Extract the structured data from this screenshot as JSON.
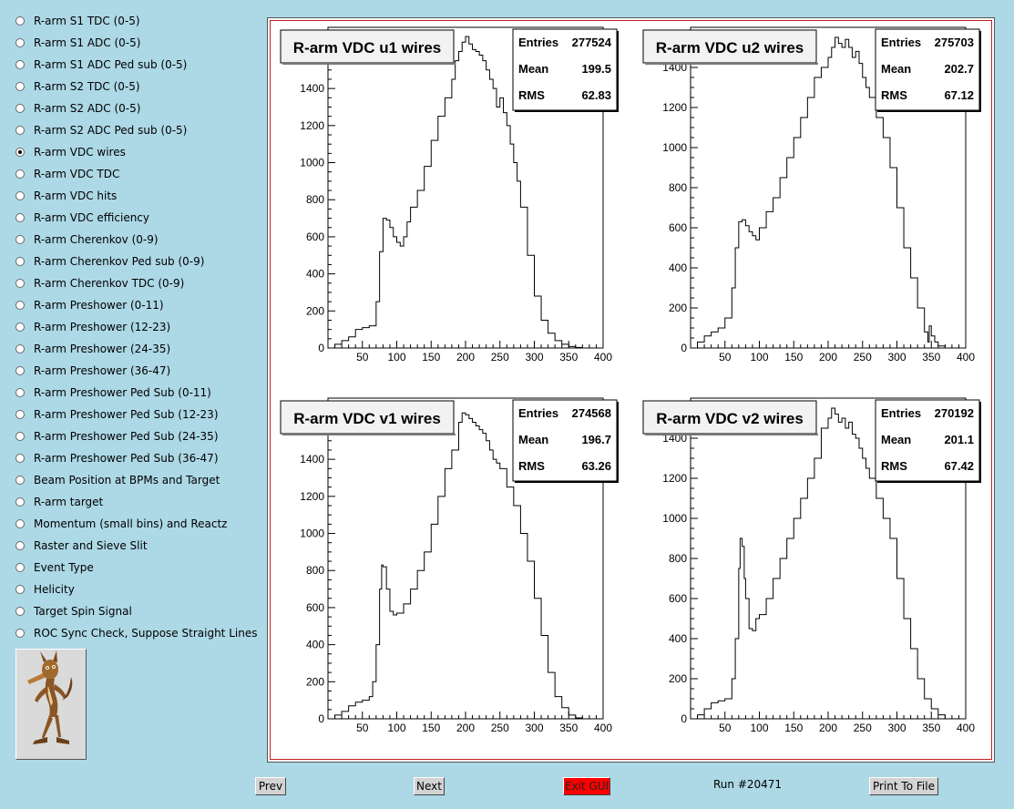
{
  "menu": {
    "selected_index": 6,
    "items": [
      "R-arm S1 TDC (0-5)",
      "R-arm S1 ADC (0-5)",
      "R-arm S1 ADC Ped sub (0-5)",
      "R-arm S2 TDC (0-5)",
      "R-arm S2 ADC (0-5)",
      "R-arm S2 ADC Ped sub (0-5)",
      "R-arm VDC wires",
      "R-arm VDC TDC",
      "R-arm VDC hits",
      "R-arm VDC efficiency",
      "R-arm Cherenkov (0-9)",
      "R-arm Cherenkov Ped sub (0-9)",
      "R-arm Cherenkov TDC (0-9)",
      "R-arm Preshower (0-11)",
      "R-arm Preshower (12-23)",
      "R-arm Preshower (24-35)",
      "R-arm Preshower (36-47)",
      "R-arm Preshower Ped Sub (0-11)",
      "R-arm Preshower Ped Sub (12-23)",
      "R-arm Preshower Ped Sub (24-35)",
      "R-arm Preshower Ped Sub (36-47)",
      "Beam Position at BPMs and Target",
      "R-arm target",
      "Momentum (small bins) and Reactz",
      "Raster and Sieve Slit",
      "Event Type",
      "Helicity",
      "Target Spin Signal",
      "ROC Sync Check, Suppose Straight Lines"
    ]
  },
  "logo": {
    "icon": "coyote-mascot-icon"
  },
  "buttons": {
    "prev": "Prev",
    "next": "Next",
    "exit": "Exit GUI",
    "print": "Print To File"
  },
  "run_label": "Run #20471",
  "stats_labels": {
    "entries": "Entries",
    "mean": "Mean",
    "rms": "RMS"
  },
  "chart_data": [
    {
      "type": "line",
      "title": "R-arm VDC u1 wires",
      "stats": {
        "entries": "277524",
        "mean": "199.5",
        "rms": "62.83"
      },
      "xlim": [
        0,
        400
      ],
      "ylim": [
        0,
        1730
      ],
      "xticks": [
        50,
        100,
        150,
        200,
        250,
        300,
        350,
        400
      ],
      "yticks": [
        0,
        200,
        400,
        600,
        800,
        1000,
        1200,
        1400,
        1600
      ],
      "x": [
        0,
        10,
        20,
        30,
        40,
        50,
        60,
        70,
        75,
        80,
        85,
        90,
        95,
        100,
        105,
        110,
        115,
        120,
        130,
        140,
        150,
        160,
        170,
        180,
        185,
        190,
        195,
        200,
        205,
        210,
        215,
        220,
        225,
        230,
        235,
        240,
        245,
        250,
        255,
        260,
        265,
        270,
        275,
        280,
        290,
        300,
        310,
        320,
        330,
        340,
        350,
        360,
        370
      ],
      "y": [
        0,
        20,
        40,
        60,
        100,
        110,
        120,
        250,
        520,
        700,
        690,
        650,
        600,
        570,
        550,
        600,
        680,
        760,
        850,
        980,
        1120,
        1250,
        1350,
        1450,
        1550,
        1600,
        1650,
        1680,
        1640,
        1610,
        1600,
        1580,
        1550,
        1500,
        1450,
        1400,
        1300,
        1350,
        1270,
        1200,
        1100,
        1000,
        900,
        760,
        500,
        280,
        150,
        80,
        40,
        20,
        8,
        3,
        0
      ]
    },
    {
      "type": "line",
      "title": "R-arm VDC u2 wires",
      "stats": {
        "entries": "275703",
        "mean": "202.7",
        "rms": "67.12"
      },
      "xlim": [
        0,
        400
      ],
      "ylim": [
        0,
        1600
      ],
      "xticks": [
        50,
        100,
        150,
        200,
        250,
        300,
        350,
        400
      ],
      "yticks": [
        0,
        200,
        400,
        600,
        800,
        1000,
        1200,
        1400
      ],
      "x": [
        0,
        10,
        20,
        30,
        40,
        50,
        60,
        65,
        70,
        75,
        80,
        85,
        90,
        95,
        100,
        110,
        120,
        130,
        140,
        150,
        160,
        170,
        180,
        190,
        200,
        205,
        210,
        215,
        220,
        225,
        230,
        235,
        240,
        245,
        250,
        255,
        260,
        270,
        280,
        290,
        300,
        310,
        320,
        330,
        340,
        345,
        347,
        350,
        355,
        360,
        370
      ],
      "y": [
        0,
        30,
        60,
        80,
        100,
        150,
        300,
        500,
        630,
        640,
        610,
        580,
        560,
        540,
        600,
        680,
        750,
        850,
        950,
        1050,
        1150,
        1250,
        1350,
        1400,
        1450,
        1500,
        1550,
        1520,
        1500,
        1540,
        1500,
        1450,
        1480,
        1420,
        1350,
        1300,
        1250,
        1150,
        1050,
        900,
        700,
        500,
        350,
        200,
        80,
        30,
        110,
        60,
        30,
        10,
        0
      ]
    },
    {
      "type": "line",
      "title": "R-arm VDC v1 wires",
      "stats": {
        "entries": "274568",
        "mean": "196.7",
        "rms": "63.26"
      },
      "xlim": [
        0,
        400
      ],
      "ylim": [
        0,
        1730
      ],
      "xticks": [
        50,
        100,
        150,
        200,
        250,
        300,
        350,
        400
      ],
      "yticks": [
        0,
        200,
        400,
        600,
        800,
        1000,
        1200,
        1400,
        1600
      ],
      "x": [
        0,
        10,
        20,
        30,
        40,
        50,
        60,
        65,
        70,
        75,
        78,
        80,
        85,
        90,
        95,
        100,
        110,
        120,
        130,
        140,
        150,
        160,
        170,
        180,
        190,
        195,
        200,
        205,
        210,
        215,
        220,
        225,
        230,
        235,
        240,
        245,
        250,
        260,
        270,
        280,
        290,
        300,
        310,
        320,
        330,
        340,
        350,
        360,
        370
      ],
      "y": [
        0,
        20,
        40,
        70,
        90,
        100,
        120,
        200,
        400,
        700,
        830,
        820,
        700,
        580,
        560,
        570,
        620,
        700,
        800,
        900,
        1050,
        1200,
        1350,
        1450,
        1600,
        1650,
        1640,
        1620,
        1600,
        1580,
        1560,
        1540,
        1500,
        1450,
        1400,
        1380,
        1350,
        1250,
        1150,
        1000,
        850,
        650,
        450,
        250,
        120,
        60,
        20,
        5,
        0
      ]
    },
    {
      "type": "line",
      "title": "R-arm VDC v2 wires",
      "stats": {
        "entries": "270192",
        "mean": "201.1",
        "rms": "67.42"
      },
      "xlim": [
        0,
        400
      ],
      "ylim": [
        0,
        1600
      ],
      "xticks": [
        50,
        100,
        150,
        200,
        250,
        300,
        350,
        400
      ],
      "yticks": [
        0,
        200,
        400,
        600,
        800,
        1000,
        1200,
        1400
      ],
      "x": [
        0,
        10,
        20,
        30,
        40,
        50,
        60,
        65,
        70,
        72,
        75,
        78,
        80,
        85,
        90,
        95,
        100,
        110,
        120,
        130,
        140,
        150,
        160,
        170,
        180,
        190,
        200,
        205,
        210,
        215,
        220,
        225,
        230,
        235,
        240,
        245,
        250,
        255,
        260,
        270,
        280,
        290,
        300,
        310,
        320,
        330,
        340,
        350,
        360,
        370
      ],
      "y": [
        0,
        20,
        50,
        80,
        90,
        100,
        200,
        400,
        750,
        900,
        860,
        700,
        600,
        450,
        440,
        500,
        520,
        600,
        700,
        800,
        900,
        1000,
        1100,
        1200,
        1300,
        1450,
        1500,
        1550,
        1520,
        1480,
        1500,
        1450,
        1480,
        1420,
        1400,
        1350,
        1300,
        1250,
        1200,
        1100,
        1000,
        900,
        700,
        500,
        350,
        200,
        100,
        50,
        20,
        0
      ]
    }
  ]
}
